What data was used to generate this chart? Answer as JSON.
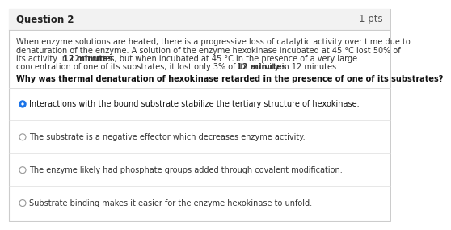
{
  "title": "Question 2",
  "pts": "1 pts",
  "background_color": "#ffffff",
  "header_bg": "#f2f2f2",
  "border_color": "#cccccc",
  "sep_color": "#dddddd",
  "body_text_lines": [
    "When enzyme solutions are heated, there is a progressive loss of catalytic activity over time due to",
    "denaturation of the enzyme. A solution of the enzyme hexokinase incubated at 45 °C lost 50% of",
    "its activity in 12 minutes, but when incubated at 45 °C in the presence of a very large",
    "concentration of one of its substrates, it lost only 3% of its activity in 12 minutes."
  ],
  "bold_segments": [
    {
      "line": 2,
      "text": "12 minutes"
    },
    {
      "line": 3,
      "text": "12 minutes"
    }
  ],
  "question_lines": [
    "Why was thermal denaturation of hexokinase retarded in the presence of one of its substrates?"
  ],
  "options": [
    "Interactions with the bound substrate stabilize the tertiary structure of hexokinase.",
    "The substrate is a negative effector which decreases enzyme activity.",
    "The enzyme likely had phosphate groups added through covalent modification.",
    "Substrate binding makes it easier for the enzyme hexokinase to unfold."
  ],
  "selected_option": 0,
  "selected_color": "#1a73e8",
  "unselected_color": "#999999",
  "text_color": "#333333",
  "title_fontsize": 8.5,
  "body_fontsize": 7.0,
  "question_fontsize": 7.0,
  "option_fontsize": 7.0
}
